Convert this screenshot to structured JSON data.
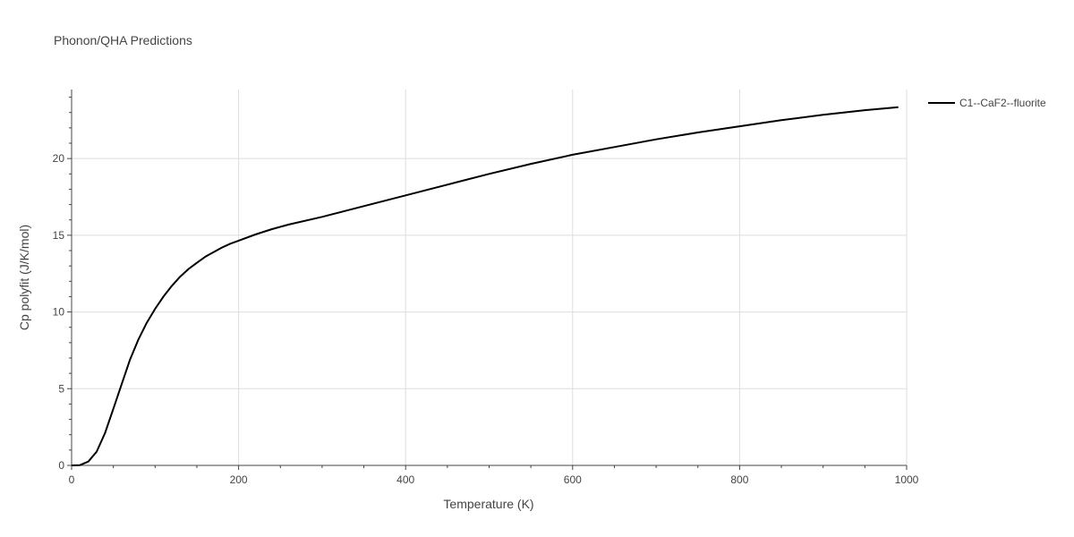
{
  "chart_data": {
    "type": "line",
    "title": "Phonon/QHA Predictions",
    "xlabel": "Temperature (K)",
    "ylabel": "Cp polyfit (J/K/mol)",
    "xlim": [
      0,
      1000
    ],
    "ylim": [
      0,
      24.5
    ],
    "x_ticks": [
      0,
      200,
      400,
      600,
      800,
      1000
    ],
    "y_ticks": [
      0,
      5,
      10,
      15,
      20
    ],
    "x_tick_labels": [
      "0",
      "200",
      "400",
      "600",
      "800",
      "1000"
    ],
    "y_tick_labels": [
      "0",
      "5",
      "10",
      "15",
      "20"
    ],
    "grid": true,
    "legend_position": "top-right",
    "series": [
      {
        "name": "C1--CaF2--fluorite",
        "color": "#000000",
        "x": [
          0,
          10,
          20,
          30,
          40,
          50,
          60,
          70,
          80,
          90,
          100,
          110,
          120,
          130,
          140,
          150,
          160,
          170,
          180,
          190,
          200,
          220,
          240,
          260,
          300,
          350,
          400,
          450,
          500,
          550,
          600,
          650,
          700,
          750,
          800,
          850,
          900,
          950,
          990
        ],
        "y": [
          0,
          0.02,
          0.25,
          0.9,
          2.1,
          3.7,
          5.3,
          6.9,
          8.2,
          9.3,
          10.2,
          11.0,
          11.7,
          12.3,
          12.8,
          13.2,
          13.6,
          13.9,
          14.2,
          14.45,
          14.65,
          15.05,
          15.4,
          15.7,
          16.2,
          16.9,
          17.6,
          18.3,
          19.0,
          19.65,
          20.25,
          20.75,
          21.25,
          21.7,
          22.1,
          22.5,
          22.85,
          23.15,
          23.35
        ]
      }
    ]
  }
}
